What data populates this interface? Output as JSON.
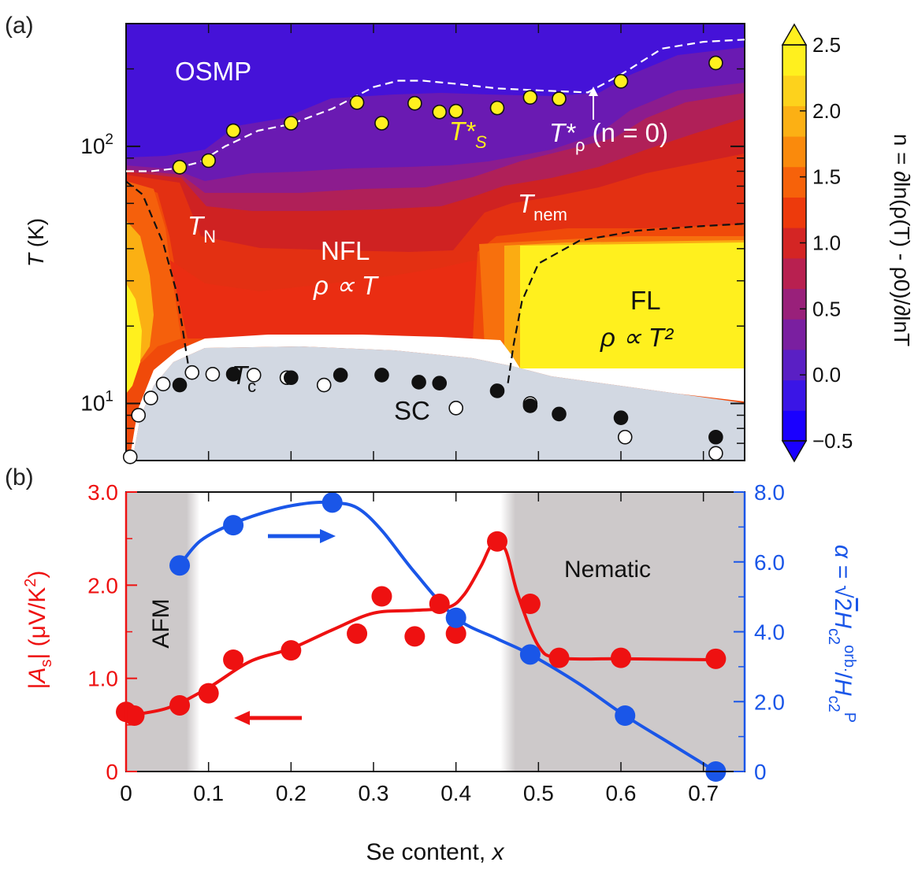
{
  "chart_data": [
    {
      "type": "heatmap",
      "panel_label": "(a)",
      "xlabel": "",
      "ylabel": "T (K)",
      "ylabel_parts": {
        "italic": "T",
        "rest": " (K)"
      },
      "xlim": [
        0,
        0.75
      ],
      "ylim": [
        6,
        300
      ],
      "yscale": "log",
      "y_ticks": [
        {
          "value": 10,
          "label": "10",
          "sup": "1"
        },
        {
          "value": 100,
          "label": "10",
          "sup": "2"
        }
      ],
      "colorbar": {
        "label": "n = ∂ln(ρ(T) - ρ0)/∂lnT",
        "range": [
          -0.5,
          2.5
        ],
        "ticks": [
          "2.5",
          "2.0",
          "1.5",
          "1.0",
          "0.5",
          "0.0",
          "−0.5"
        ],
        "tick_values": [
          2.5,
          2.0,
          1.5,
          1.0,
          0.5,
          0.0,
          -0.5
        ],
        "colors": [
          "#1a00ff",
          "#3a15e6",
          "#5a1fc4",
          "#7a1fa0",
          "#99207a",
          "#b82050",
          "#d42524",
          "#ed3a0c",
          "#f6620a",
          "#fa8a0c",
          "#fcb014",
          "#fdd21c",
          "#fff01e"
        ]
      },
      "regions": {
        "OSMP": "OSMP",
        "NFL": "NFL",
        "NFL_law": "ρ ∝ T",
        "FL": "FL",
        "FL_law": "ρ ∝ T²",
        "SC": "SC"
      },
      "line_labels": {
        "T_N": {
          "main": "T",
          "sub": "N"
        },
        "T_nem": {
          "main": "T",
          "sub": "nem"
        },
        "T_c": {
          "main": "T",
          "sub": "c"
        },
        "T_S": {
          "main": "T*",
          "sub": "S"
        },
        "T_rho": {
          "main": "T*",
          "sub": "ρ",
          "tail": " (n = 0)"
        }
      },
      "series": [
        {
          "name": "T*S",
          "marker": "yellow-circle",
          "x": [
            0.065,
            0.1,
            0.13,
            0.2,
            0.28,
            0.31,
            0.35,
            0.38,
            0.4,
            0.45,
            0.49,
            0.525,
            0.6,
            0.715
          ],
          "y": [
            83,
            88,
            115,
            123,
            148,
            123,
            147,
            136,
            137,
            141,
            155,
            153,
            179,
            211
          ]
        },
        {
          "name": "T*rho (n = 0)",
          "marker": "dashed-white",
          "x": [
            0,
            0.03,
            0.06,
            0.09,
            0.12,
            0.16,
            0.2,
            0.25,
            0.3,
            0.33,
            0.36,
            0.4,
            0.45,
            0.5,
            0.56,
            0.6,
            0.65,
            0.7,
            0.75
          ],
          "y": [
            80,
            80,
            82,
            87,
            100,
            115,
            122,
            140,
            170,
            180,
            180,
            175,
            168,
            165,
            162,
            190,
            240,
            255,
            260
          ]
        },
        {
          "name": "T_N",
          "marker": "dashed-black",
          "x": [
            0,
            0.02,
            0.045,
            0.06,
            0.068,
            0.074,
            0.078
          ],
          "y": [
            73,
            65,
            42,
            28,
            20,
            15,
            12.5
          ]
        },
        {
          "name": "T_nem",
          "marker": "dashed-black",
          "x": [
            0.463,
            0.47,
            0.48,
            0.5,
            0.55,
            0.62,
            0.7,
            0.75
          ],
          "y": [
            12,
            17,
            25,
            35,
            43,
            47,
            49,
            50
          ]
        },
        {
          "name": "Tc open",
          "marker": "open-circle",
          "x": [
            0.005,
            0.015,
            0.03,
            0.045,
            0.08,
            0.105,
            0.155,
            0.195,
            0.24,
            0.4,
            0.49,
            0.605,
            0.715
          ],
          "y": [
            6.2,
            9,
            10.5,
            11.9,
            13.2,
            13,
            12.9,
            12.6,
            11.8,
            9.6,
            10,
            7.4,
            6.4
          ]
        },
        {
          "name": "Tc filled",
          "marker": "filled-circle",
          "x": [
            0.065,
            0.13,
            0.2,
            0.26,
            0.31,
            0.355,
            0.38,
            0.45,
            0.49,
            0.525,
            0.6,
            0.715
          ],
          "y": [
            11.8,
            13,
            12.6,
            12.9,
            12.9,
            12.1,
            12,
            11.2,
            9.8,
            9.1,
            8.8,
            7.4
          ]
        }
      ]
    },
    {
      "type": "scatter",
      "panel_label": "(b)",
      "xlabel": "Se content, x",
      "xlabel_parts": {
        "text": "Se content, ",
        "italic": "x"
      },
      "xlim": [
        0,
        0.75
      ],
      "x_ticks": [
        "0",
        "0.1",
        "0.2",
        "0.3",
        "0.4",
        "0.5",
        "0.6",
        "0.7"
      ],
      "x_tick_values": [
        0,
        0.1,
        0.2,
        0.3,
        0.4,
        0.5,
        0.6,
        0.7
      ],
      "left_axis": {
        "label": "|As| (μV/K²)",
        "label_parts": {
          "pre": "|",
          "italic": "A",
          "sub": "s",
          "post": "| (μV/K",
          "sup": "2",
          "end": ")"
        },
        "ylim": [
          0,
          3.0
        ],
        "ticks": [
          "0",
          "1.0",
          "2.0",
          "3.0"
        ],
        "tick_values": [
          0,
          1.0,
          2.0,
          3.0
        ],
        "color": "#ee1111"
      },
      "right_axis": {
        "label": "α = √2Hc2orb./Hc2P",
        "label_parts": {
          "alpha": "α = ",
          "sqrt": "√",
          "two": "2",
          "H": "H",
          "sub1": "c2",
          "sup1": "orb.",
          "slash": "/",
          "H2": "H",
          "sub2": "c2",
          "sup2": "P"
        },
        "ylim": [
          0,
          8.0
        ],
        "ticks": [
          "0",
          "2.0",
          "4.0",
          "6.0",
          "8.0"
        ],
        "tick_values": [
          0,
          2.0,
          4.0,
          6.0,
          8.0
        ],
        "color": "#1a56e8"
      },
      "shaded_regions": [
        {
          "label": "AFM",
          "from": 0,
          "to": 0.078
        },
        {
          "label": "Nematic",
          "from": 0.46,
          "to": 0.75
        }
      ],
      "series": [
        {
          "name": "|As|",
          "axis": "left",
          "color": "#ee1111",
          "x": [
            0,
            0.01,
            0.065,
            0.1,
            0.13,
            0.2,
            0.28,
            0.31,
            0.35,
            0.38,
            0.4,
            0.45,
            0.49,
            0.525,
            0.6,
            0.715
          ],
          "y": [
            0.64,
            0.6,
            0.71,
            0.84,
            1.2,
            1.3,
            1.48,
            1.88,
            1.45,
            1.8,
            1.48,
            2.47,
            1.8,
            1.22,
            1.22,
            1.21
          ]
        },
        {
          "name": "|As| fit",
          "axis": "left",
          "color": "#ee1111",
          "line": true,
          "x": [
            0,
            0.05,
            0.1,
            0.15,
            0.2,
            0.25,
            0.3,
            0.35,
            0.39,
            0.41,
            0.43,
            0.445,
            0.46,
            0.475,
            0.5,
            0.525,
            0.6,
            0.715
          ],
          "y": [
            0.6,
            0.68,
            0.9,
            1.18,
            1.32,
            1.52,
            1.7,
            1.73,
            1.76,
            1.9,
            2.2,
            2.45,
            2.38,
            1.9,
            1.35,
            1.22,
            1.21,
            1.2
          ]
        },
        {
          "name": "alpha",
          "axis": "right",
          "color": "#1a56e8",
          "x": [
            0.065,
            0.13,
            0.25,
            0.4,
            0.49,
            0.605,
            0.715
          ],
          "y": [
            5.9,
            7.05,
            7.7,
            4.4,
            3.35,
            1.6,
            0
          ]
        },
        {
          "name": "alpha fit",
          "axis": "right",
          "color": "#1a56e8",
          "line": true,
          "x": [
            0.065,
            0.09,
            0.13,
            0.18,
            0.22,
            0.25,
            0.28,
            0.31,
            0.35,
            0.4,
            0.45,
            0.49,
            0.55,
            0.605,
            0.66,
            0.715
          ],
          "y": [
            5.9,
            6.6,
            7.1,
            7.5,
            7.68,
            7.7,
            7.55,
            6.9,
            5.7,
            4.4,
            3.8,
            3.35,
            2.5,
            1.6,
            0.8,
            0
          ]
        }
      ]
    }
  ]
}
